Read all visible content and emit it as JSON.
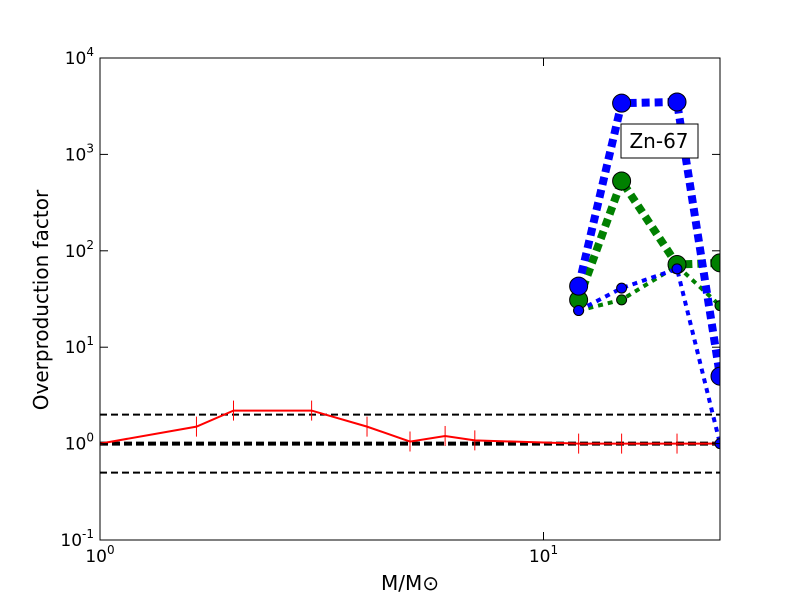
{
  "chart_data": {
    "type": "line",
    "xlabel": "M/M⊙",
    "ylabel": "Overproduction factor",
    "xscale": "log",
    "yscale": "log",
    "xlim": [
      1,
      25
    ],
    "ylim": [
      0.1,
      10000
    ],
    "xticks": [
      {
        "value": 1,
        "label": "10^0"
      },
      {
        "value": 10,
        "label": "10^1"
      }
    ],
    "yticks": [
      {
        "value": 0.1,
        "label": "10^-1"
      },
      {
        "value": 1,
        "label": "10^0"
      },
      {
        "value": 10,
        "label": "10^1"
      },
      {
        "value": 100,
        "label": "10^2"
      },
      {
        "value": 1000,
        "label": "10^3"
      },
      {
        "value": 10000,
        "label": "10^4"
      }
    ],
    "annotation": "Zn-67",
    "hlines": [
      {
        "y": 1,
        "style": "thick"
      },
      {
        "y": 2,
        "style": "thin"
      },
      {
        "y": 0.5,
        "style": "thin"
      }
    ],
    "series": [
      {
        "color": "#ff0000",
        "style": "solid",
        "marker": "vline",
        "x": [
          1,
          1.65,
          2,
          3,
          4,
          5,
          6,
          7,
          12,
          15,
          20,
          25
        ],
        "values": [
          1.0,
          1.5,
          2.2,
          2.2,
          1.5,
          1.05,
          1.2,
          1.08,
          1.0,
          1.0,
          1.0,
          1.0
        ]
      },
      {
        "color": "#008000",
        "style": "dotted-thin",
        "marker": "small-circle",
        "x": [
          12,
          15,
          20,
          25
        ],
        "values": [
          24,
          31,
          70,
          27
        ]
      },
      {
        "color": "#008000",
        "style": "dotted-thick",
        "marker": "large-circle",
        "x": [
          12,
          15,
          20,
          25
        ],
        "values": [
          31,
          530,
          72,
          75
        ]
      },
      {
        "color": "#0000ff",
        "style": "dotted-thin",
        "marker": "small-circle",
        "x": [
          12,
          15,
          20,
          25
        ],
        "values": [
          24,
          41,
          65,
          1.0
        ]
      },
      {
        "color": "#0000ff",
        "style": "dotted-thick",
        "marker": "large-circle",
        "x": [
          12,
          15,
          20,
          25
        ],
        "values": [
          43,
          3400,
          3500,
          5
        ]
      }
    ]
  }
}
